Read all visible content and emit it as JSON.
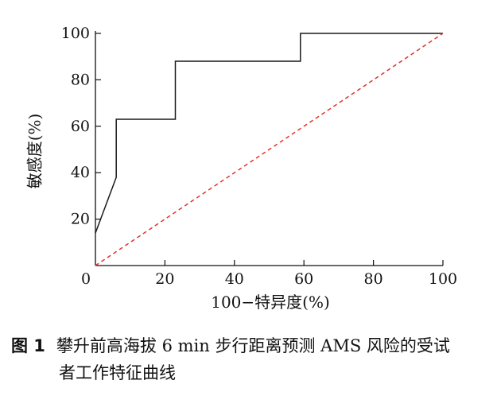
{
  "chart_data": {
    "type": "line",
    "xlabel": "100−特异度(%)",
    "ylabel": "敏感度(%)",
    "xlim": [
      0,
      100
    ],
    "ylim": [
      0,
      100
    ],
    "xticks": [
      "0",
      "20",
      "40",
      "60",
      "80",
      "100"
    ],
    "yticks": [
      "20",
      "40",
      "60",
      "80",
      "100"
    ],
    "grid": false,
    "series": [
      {
        "style": "solid",
        "color": "#1a1a1a",
        "x": [
          0,
          6,
          6,
          23,
          23,
          59,
          59,
          100
        ],
        "y": [
          14,
          38,
          63,
          63,
          88,
          88,
          100,
          100
        ]
      },
      {
        "style": "dashed",
        "color": "#e0342c",
        "x": [
          0,
          100
        ],
        "y": [
          0,
          100
        ]
      }
    ]
  },
  "caption": {
    "label": "图 1",
    "line1": "攀升前高海拔 6 min 步行距离预测 AMS 风险的受试",
    "line2": "者工作特征曲线"
  }
}
